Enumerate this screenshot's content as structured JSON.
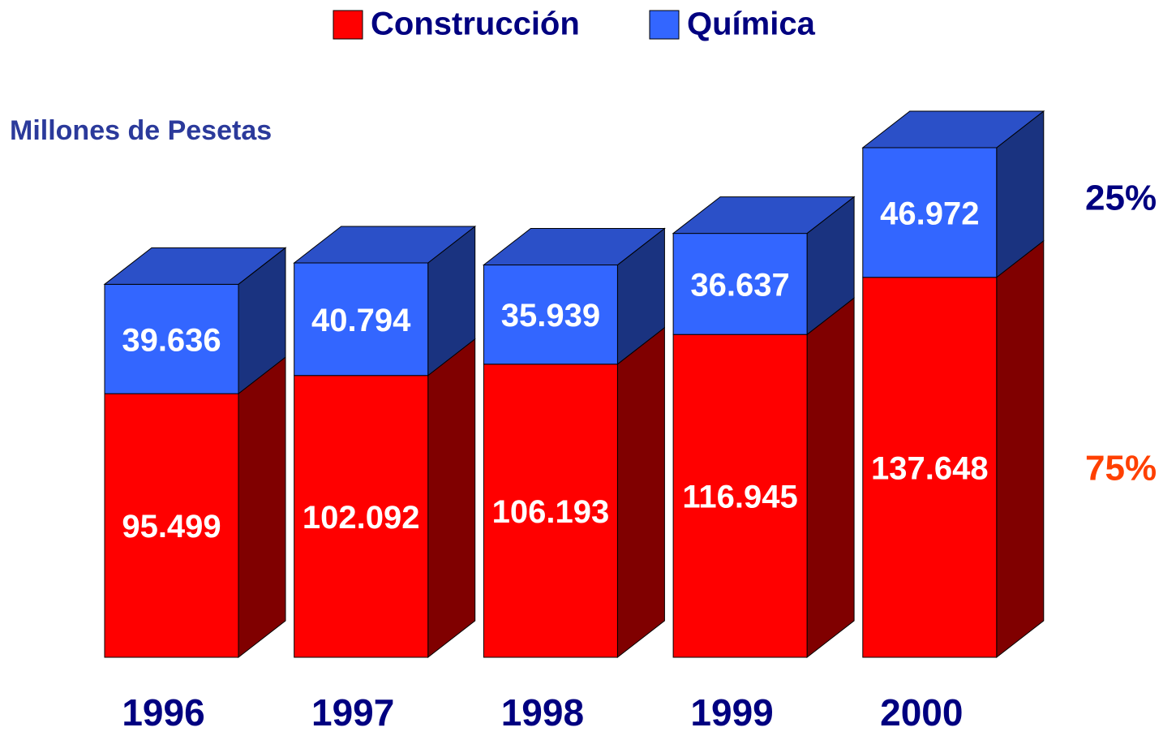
{
  "chart_data": {
    "type": "bar",
    "stacked": true,
    "y_axis_label": "Millones de Pesetas",
    "categories": [
      "1996",
      "1997",
      "1998",
      "1999",
      "2000"
    ],
    "series": [
      {
        "name": "Construcción",
        "color": "#ff0000",
        "side_color": "#800000",
        "values": [
          95499,
          102092,
          106193,
          116945,
          137648
        ],
        "value_labels": [
          "95.499",
          "102.092",
          "106.193",
          "116.945",
          "137.648"
        ]
      },
      {
        "name": "Química",
        "color": "#3366ff",
        "side_color": "#1a3380",
        "top_color": "#2b50c8",
        "values": [
          39636,
          40794,
          35939,
          36637,
          46972
        ],
        "value_labels": [
          "39.636",
          "40.794",
          "35.939",
          "36.637",
          "46.972"
        ]
      }
    ],
    "annotations": [
      {
        "text": "25%",
        "color": "#000080"
      },
      {
        "text": "75%",
        "color": "#ff4000"
      }
    ]
  }
}
